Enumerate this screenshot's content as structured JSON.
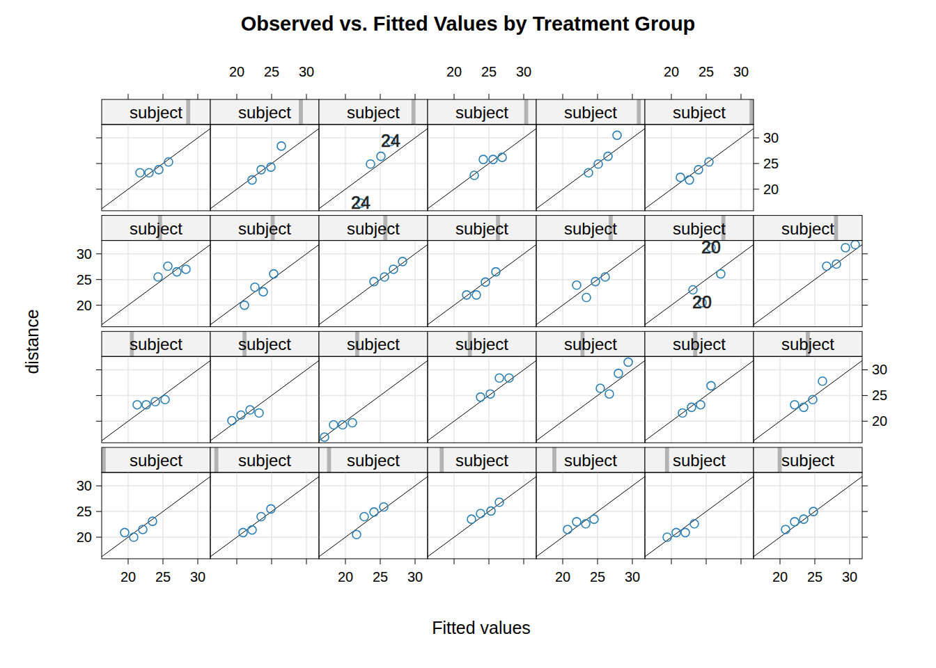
{
  "chart_data": {
    "type": "scatter",
    "title": "Observed vs. Fitted Values by Treatment Group",
    "x_label": "Fitted values",
    "y_label": "distance",
    "xlim": [
      16.2,
      31.8
    ],
    "ylim": [
      15.8,
      32.6
    ],
    "xticks": [
      20,
      25,
      30
    ],
    "yticks": [
      20,
      25,
      30
    ],
    "grid": true,
    "color": "#2a80b9",
    "marker": "circle",
    "panels": [
      {
        "strip": "subject",
        "x": [
          19.5,
          20.8,
          22.1,
          23.5
        ],
        "y": [
          20.9,
          20.0,
          21.5,
          23.1
        ]
      },
      {
        "strip": "subject",
        "x": [
          20.9,
          22.2,
          23.5,
          24.9
        ],
        "y": [
          20.9,
          21.4,
          24.0,
          25.5
        ]
      },
      {
        "strip": "subject",
        "x": [
          21.6,
          22.7,
          24.1,
          25.5
        ],
        "y": [
          20.5,
          24.0,
          24.9,
          25.9
        ]
      },
      {
        "strip": "subject",
        "x": [
          22.5,
          23.8,
          25.3,
          26.5
        ],
        "y": [
          23.5,
          24.6,
          25.1,
          26.8
        ]
      },
      {
        "strip": "subject",
        "x": [
          20.7,
          22.0,
          23.3,
          24.5
        ],
        "y": [
          21.5,
          23.0,
          22.6,
          23.5
        ]
      },
      {
        "strip": "subject",
        "x": [
          19.4,
          20.7,
          22.0,
          23.3
        ],
        "y": [
          20.0,
          20.9,
          20.9,
          22.6
        ]
      },
      {
        "strip": "subject",
        "x": [
          20.8,
          22.1,
          23.4,
          24.8
        ],
        "y": [
          21.5,
          23.0,
          23.5,
          25.0
        ]
      },
      {
        "strip": "subject",
        "x": [
          21.3,
          22.6,
          23.9,
          25.3
        ],
        "y": [
          23.2,
          23.2,
          23.8,
          24.2
        ]
      },
      {
        "strip": "subject",
        "x": [
          19.3,
          20.6,
          21.9,
          23.2
        ],
        "y": [
          20.1,
          21.2,
          22.2,
          21.6
        ]
      },
      {
        "strip": "subject",
        "x": [
          17.0,
          18.3,
          19.6,
          21.0
        ],
        "y": [
          16.9,
          19.3,
          19.3,
          19.7
        ]
      },
      {
        "strip": "subject",
        "x": [
          23.8,
          25.2,
          26.5,
          27.9
        ],
        "y": [
          24.7,
          25.3,
          28.4,
          28.4
        ]
      },
      {
        "strip": "subject",
        "x": [
          25.4,
          26.7,
          28.0,
          29.4
        ],
        "y": [
          26.4,
          25.3,
          29.3,
          31.5
        ]
      },
      {
        "strip": "subject",
        "x": [
          21.6,
          22.9,
          24.2,
          25.7
        ],
        "y": [
          21.6,
          22.7,
          23.2,
          26.9
        ]
      },
      {
        "strip": "subject",
        "x": [
          22.1,
          23.4,
          24.7,
          26.1
        ],
        "y": [
          23.2,
          22.7,
          24.2,
          27.8
        ]
      },
      {
        "strip": "subject",
        "x": [
          24.3,
          25.7,
          27.0,
          28.3
        ],
        "y": [
          25.5,
          27.6,
          26.5,
          27.0
        ]
      },
      {
        "strip": "subject",
        "x": [
          21.1,
          22.6,
          23.8,
          25.3
        ],
        "y": [
          20.0,
          23.5,
          22.6,
          26.1
        ]
      },
      {
        "strip": "subject",
        "x": [
          24.1,
          25.6,
          26.9,
          28.2
        ],
        "y": [
          24.6,
          25.5,
          27.0,
          28.5
        ]
      },
      {
        "strip": "subject",
        "x": [
          21.8,
          23.2,
          24.5,
          26.0
        ],
        "y": [
          22.0,
          22.0,
          24.5,
          26.5
        ]
      },
      {
        "strip": "subject",
        "x": [
          22.0,
          23.4,
          24.7,
          26.1
        ],
        "y": [
          23.9,
          21.5,
          24.6,
          25.5
        ]
      },
      {
        "strip": "subject",
        "x": [
          23.1,
          24.4,
          25.7,
          27.1
        ],
        "y": [
          23.0,
          20.5,
          31.2,
          26.1
        ],
        "labels": [
          {
            "text": "20",
            "x": 25.7,
            "y": 31.2
          },
          {
            "text": "20",
            "x": 24.4,
            "y": 20.5
          }
        ]
      },
      {
        "strip": "subject",
        "x": [
          26.7,
          28.1,
          29.4,
          30.8
        ],
        "y": [
          27.6,
          28.0,
          31.2,
          31.8
        ]
      },
      {
        "strip": "subject",
        "x": [
          21.7,
          23.0,
          24.4,
          25.8
        ],
        "y": [
          23.2,
          23.2,
          23.8,
          25.3
        ]
      },
      {
        "strip": "subject",
        "x": [
          22.2,
          23.5,
          24.9,
          26.4
        ],
        "y": [
          21.8,
          23.8,
          24.3,
          28.4
        ]
      },
      {
        "strip": "subject",
        "x": [
          22.2,
          23.6,
          25.1,
          26.5
        ],
        "y": [
          17.3,
          24.9,
          26.4,
          29.3
        ],
        "labels": [
          {
            "text": "24",
            "x": 26.5,
            "y": 29.3
          },
          {
            "text": "24",
            "x": 22.2,
            "y": 17.3
          }
        ]
      },
      {
        "strip": "subject",
        "x": [
          22.9,
          24.2,
          25.6,
          26.9
        ],
        "y": [
          22.7,
          25.8,
          25.8,
          26.2
        ]
      },
      {
        "strip": "subject",
        "x": [
          23.7,
          25.1,
          26.5,
          27.8
        ],
        "y": [
          23.2,
          24.9,
          26.4,
          30.5
        ]
      },
      {
        "strip": "subject",
        "x": [
          21.3,
          22.6,
          23.9,
          25.4
        ],
        "y": [
          22.3,
          21.8,
          23.8,
          25.3
        ]
      }
    ]
  }
}
